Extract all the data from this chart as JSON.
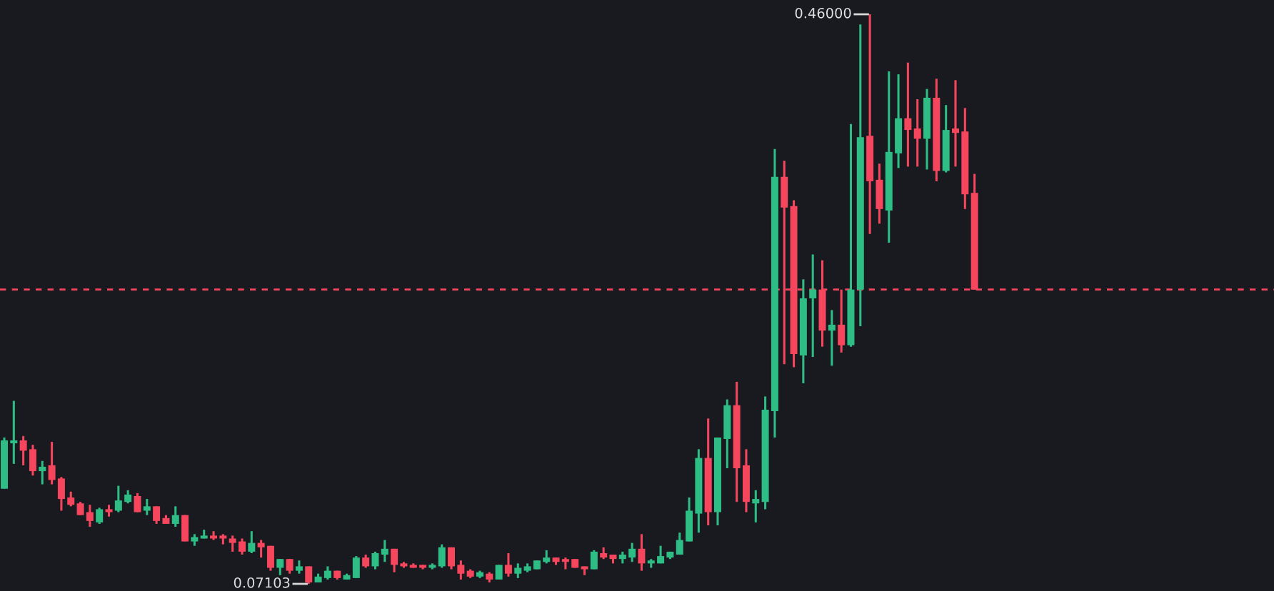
{
  "chart_data": {
    "type": "candlestick",
    "categories": [
      null,
      null,
      null,
      null,
      null,
      null,
      null,
      null,
      null,
      null,
      null,
      null,
      null,
      null,
      null,
      null,
      null,
      null,
      null,
      null,
      null,
      null,
      null,
      null,
      null,
      null,
      null,
      null,
      null,
      null,
      null,
      null,
      null,
      null,
      null,
      null,
      null,
      null,
      null,
      null,
      null,
      null,
      null,
      null,
      null,
      null,
      null,
      null,
      null,
      null,
      null,
      null,
      null,
      null,
      null,
      null,
      null,
      null,
      null,
      null,
      null,
      null,
      null,
      null,
      null,
      null,
      null,
      null,
      null,
      null,
      null,
      null,
      null,
      null,
      null,
      null,
      null,
      null,
      null,
      null,
      null,
      null,
      null,
      null,
      null,
      null,
      null,
      null,
      null,
      null,
      null,
      null,
      null,
      null,
      null,
      null,
      null,
      null,
      null,
      null,
      null,
      null,
      null
    ],
    "ohlc": [
      [
        0.136,
        0.171,
        0.136,
        0.169
      ],
      [
        0.167,
        0.196,
        0.153,
        0.169
      ],
      [
        0.169,
        0.172,
        0.152,
        0.162
      ],
      [
        0.163,
        0.166,
        0.145,
        0.148
      ],
      [
        0.148,
        0.155,
        0.139,
        0.151
      ],
      [
        0.152,
        0.168,
        0.139,
        0.142
      ],
      [
        0.143,
        0.144,
        0.121,
        0.129
      ],
      [
        0.13,
        0.134,
        0.124,
        0.125
      ],
      [
        0.126,
        0.127,
        0.118,
        0.118
      ],
      [
        0.12,
        0.125,
        0.11,
        0.114
      ],
      [
        0.113,
        0.123,
        0.112,
        0.122
      ],
      [
        0.122,
        0.125,
        0.117,
        0.12
      ],
      [
        0.121,
        0.138,
        0.12,
        0.128
      ],
      [
        0.127,
        0.135,
        0.126,
        0.132
      ],
      [
        0.131,
        0.133,
        0.12,
        0.12
      ],
      [
        0.121,
        0.129,
        0.118,
        0.124
      ],
      [
        0.124,
        0.124,
        0.112,
        0.114
      ],
      [
        0.116,
        0.118,
        0.112,
        0.112
      ],
      [
        0.112,
        0.124,
        0.11,
        0.118
      ],
      [
        0.118,
        0.118,
        0.1,
        0.1
      ],
      [
        0.1,
        0.105,
        0.097,
        0.103
      ],
      [
        0.102,
        0.108,
        0.102,
        0.104
      ],
      [
        0.104,
        0.107,
        0.101,
        0.102
      ],
      [
        0.104,
        0.105,
        0.098,
        0.102
      ],
      [
        0.102,
        0.104,
        0.093,
        0.099
      ],
      [
        0.1,
        0.102,
        0.091,
        0.093
      ],
      [
        0.093,
        0.107,
        0.092,
        0.099
      ],
      [
        0.099,
        0.101,
        0.089,
        0.096
      ],
      [
        0.097,
        0.097,
        0.08,
        0.082
      ],
      [
        0.082,
        0.088,
        0.077,
        0.088
      ],
      [
        0.088,
        0.088,
        0.078,
        0.08
      ],
      [
        0.08,
        0.087,
        0.078,
        0.083
      ],
      [
        0.083,
        0.083,
        0.07103,
        0.072
      ],
      [
        0.072,
        0.078,
        0.072,
        0.076
      ],
      [
        0.075,
        0.083,
        0.074,
        0.08
      ],
      [
        0.08,
        0.08,
        0.074,
        0.075
      ],
      [
        0.074,
        0.078,
        0.074,
        0.077
      ],
      [
        0.075,
        0.09,
        0.075,
        0.089
      ],
      [
        0.089,
        0.091,
        0.082,
        0.083
      ],
      [
        0.083,
        0.093,
        0.081,
        0.092
      ],
      [
        0.091,
        0.101,
        0.086,
        0.095
      ],
      [
        0.095,
        0.095,
        0.079,
        0.084
      ],
      [
        0.085,
        0.086,
        0.082,
        0.083
      ],
      [
        0.084,
        0.085,
        0.082,
        0.082
      ],
      [
        0.084,
        0.084,
        0.081,
        0.082
      ],
      [
        0.082,
        0.085,
        0.081,
        0.084
      ],
      [
        0.083,
        0.098,
        0.082,
        0.096
      ],
      [
        0.096,
        0.096,
        0.081,
        0.083
      ],
      [
        0.084,
        0.087,
        0.074,
        0.078
      ],
      [
        0.08,
        0.081,
        0.075,
        0.076
      ],
      [
        0.076,
        0.08,
        0.075,
        0.079
      ],
      [
        0.078,
        0.079,
        0.072,
        0.074
      ],
      [
        0.074,
        0.084,
        0.074,
        0.084
      ],
      [
        0.084,
        0.092,
        0.076,
        0.078
      ],
      [
        0.078,
        0.085,
        0.075,
        0.082
      ],
      [
        0.08,
        0.085,
        0.079,
        0.083
      ],
      [
        0.081,
        0.087,
        0.081,
        0.087
      ],
      [
        0.086,
        0.094,
        0.085,
        0.089
      ],
      [
        0.089,
        0.089,
        0.084,
        0.086
      ],
      [
        0.088,
        0.089,
        0.081,
        0.086
      ],
      [
        0.088,
        0.088,
        0.082,
        0.082
      ],
      [
        0.083,
        0.083,
        0.077,
        0.081
      ],
      [
        0.081,
        0.094,
        0.081,
        0.093
      ],
      [
        0.092,
        0.096,
        0.088,
        0.089
      ],
      [
        0.091,
        0.091,
        0.085,
        0.088
      ],
      [
        0.088,
        0.093,
        0.085,
        0.091
      ],
      [
        0.089,
        0.099,
        0.086,
        0.095
      ],
      [
        0.095,
        0.105,
        0.08,
        0.085
      ],
      [
        0.085,
        0.088,
        0.082,
        0.087
      ],
      [
        0.085,
        0.097,
        0.085,
        0.09
      ],
      [
        0.089,
        0.093,
        0.088,
        0.093
      ],
      [
        0.091,
        0.106,
        0.091,
        0.101
      ],
      [
        0.1,
        0.13,
        0.1,
        0.121
      ],
      [
        0.119,
        0.163,
        0.106,
        0.157
      ],
      [
        0.157,
        0.184,
        0.111,
        0.12
      ],
      [
        0.12,
        0.171,
        0.111,
        0.171
      ],
      [
        0.17,
        0.197,
        0.15,
        0.193
      ],
      [
        0.193,
        0.209,
        0.127,
        0.15
      ],
      [
        0.152,
        0.163,
        0.12,
        0.127
      ],
      [
        0.126,
        0.135,
        0.113,
        0.129
      ],
      [
        0.127,
        0.199,
        0.122,
        0.19
      ],
      [
        0.189,
        0.368,
        0.171,
        0.349
      ],
      [
        0.349,
        0.36,
        0.221,
        0.328
      ],
      [
        0.329,
        0.333,
        0.219,
        0.228
      ],
      [
        0.227,
        0.279,
        0.208,
        0.266
      ],
      [
        0.266,
        0.296,
        0.226,
        0.272
      ],
      [
        0.272,
        0.292,
        0.233,
        0.244
      ],
      [
        0.244,
        0.258,
        0.22,
        0.248
      ],
      [
        0.248,
        0.272,
        0.229,
        0.234
      ],
      [
        0.234,
        0.385,
        0.233,
        0.272
      ],
      [
        0.272,
        0.453,
        0.247,
        0.376
      ],
      [
        0.377,
        0.46,
        0.31,
        0.346
      ],
      [
        0.347,
        0.358,
        0.317,
        0.327
      ],
      [
        0.326,
        0.421,
        0.304,
        0.366
      ],
      [
        0.365,
        0.419,
        0.355,
        0.389
      ],
      [
        0.389,
        0.427,
        0.356,
        0.381
      ],
      [
        0.382,
        0.402,
        0.356,
        0.375
      ],
      [
        0.375,
        0.409,
        0.354,
        0.403
      ],
      [
        0.403,
        0.416,
        0.346,
        0.353
      ],
      [
        0.353,
        0.398,
        0.352,
        0.381
      ],
      [
        0.382,
        0.415,
        0.356,
        0.379
      ],
      [
        0.38,
        0.396,
        0.327,
        0.337
      ],
      [
        0.338,
        0.351,
        0.272,
        0.272
      ]
    ],
    "colors": [
      "#2ebd85",
      "#2ebd85",
      "#f6465d",
      "#f6465d",
      "#2ebd85",
      "#f6465d",
      "#f6465d",
      "#f6465d",
      "#f6465d",
      "#f6465d",
      "#2ebd85",
      "#f6465d",
      "#2ebd85",
      "#2ebd85",
      "#f6465d",
      "#2ebd85",
      "#f6465d",
      "#f6465d",
      "#2ebd85",
      "#f6465d",
      "#2ebd85",
      "#2ebd85",
      "#f6465d",
      "#f6465d",
      "#f6465d",
      "#f6465d",
      "#2ebd85",
      "#f6465d",
      "#f6465d",
      "#2ebd85",
      "#f6465d",
      "#2ebd85",
      "#f6465d",
      "#2ebd85",
      "#2ebd85",
      "#f6465d",
      "#2ebd85",
      "#2ebd85",
      "#f6465d",
      "#2ebd85",
      "#2ebd85",
      "#f6465d",
      "#f6465d",
      "#f6465d",
      "#f6465d",
      "#2ebd85",
      "#2ebd85",
      "#f6465d",
      "#f6465d",
      "#f6465d",
      "#2ebd85",
      "#f6465d",
      "#2ebd85",
      "#f6465d",
      "#2ebd85",
      "#2ebd85",
      "#2ebd85",
      "#2ebd85",
      "#f6465d",
      "#f6465d",
      "#f6465d",
      "#f6465d",
      "#2ebd85",
      "#f6465d",
      "#f6465d",
      "#2ebd85",
      "#2ebd85",
      "#f6465d",
      "#2ebd85",
      "#2ebd85",
      "#2ebd85",
      "#2ebd85",
      "#2ebd85",
      "#2ebd85",
      "#f6465d",
      "#2ebd85",
      "#2ebd85",
      "#f6465d",
      "#f6465d",
      "#2ebd85",
      "#2ebd85",
      "#2ebd85",
      "#f6465d",
      "#f6465d",
      "#2ebd85",
      "#2ebd85",
      "#f6465d",
      "#2ebd85",
      "#f6465d",
      "#2ebd85",
      "#2ebd85",
      "#f6465d",
      "#f6465d",
      "#2ebd85",
      "#2ebd85",
      "#f6465d",
      "#f6465d",
      "#2ebd85",
      "#f6465d",
      "#2ebd85",
      "#f6465d",
      "#f6465d",
      "#f6465d"
    ],
    "annotations": [
      "0.46000",
      "0.07103"
    ],
    "ref_lines": [
      {
        "axis": "y",
        "value": 0.272,
        "color": "#f6465d",
        "line_style": "dashed"
      }
    ]
  }
}
